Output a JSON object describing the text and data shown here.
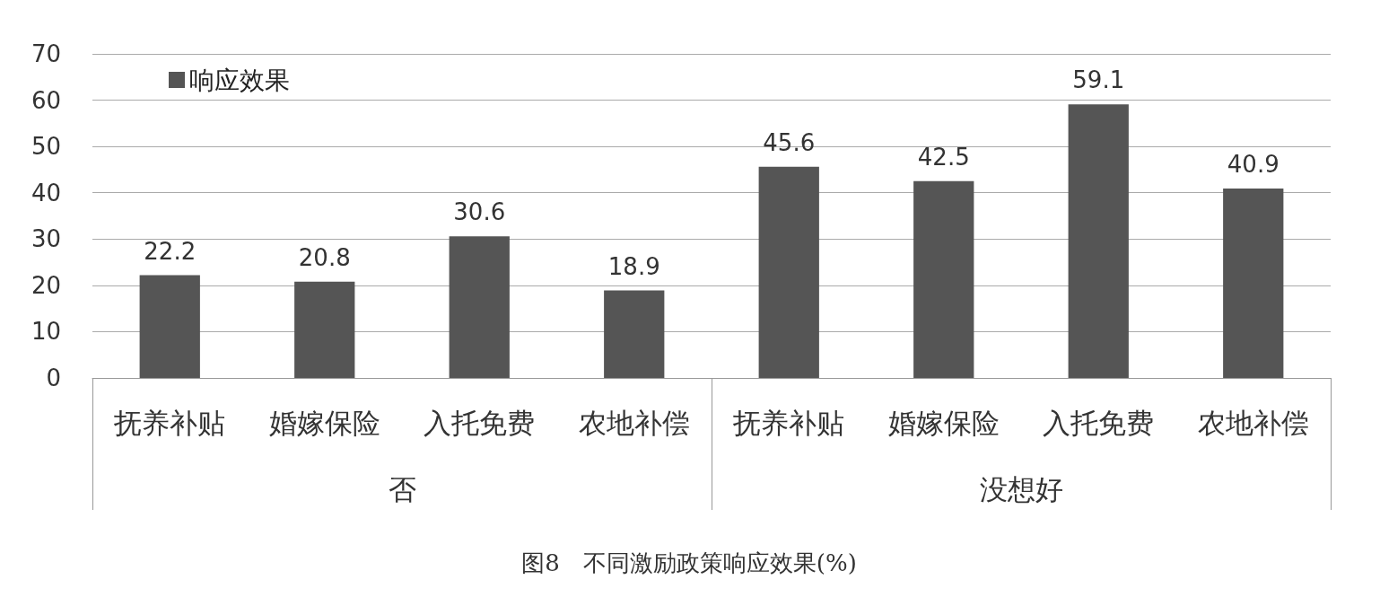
{
  "chart_data": {
    "type": "bar",
    "title": "图8　不同激励政策响应效果(%)",
    "categories": [
      "抚养补贴",
      "婚嫁保险",
      "入托免费",
      "农地补偿",
      "抚养补贴",
      "婚嫁保险",
      "入托免费",
      "农地补偿"
    ],
    "series": [
      {
        "name": "响应效果",
        "color": "#555555",
        "values": [
          22.2,
          20.8,
          30.6,
          18.9,
          45.6,
          42.5,
          59.1,
          40.9
        ]
      }
    ],
    "annotations": [
      "否",
      "没想好"
    ],
    "ylim": [
      0,
      70
    ],
    "yticks": [
      0,
      10,
      20,
      30,
      40,
      50,
      60,
      70
    ],
    "grid": "y",
    "legend": "top left",
    "data_labels": true
  }
}
